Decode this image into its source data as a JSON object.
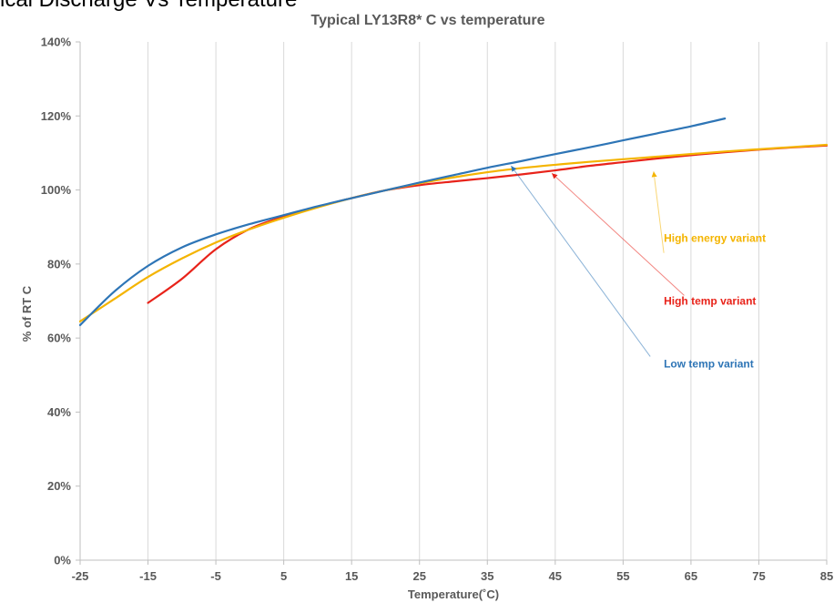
{
  "page": {
    "clipped_header": "ical Discharge Vs Temperature"
  },
  "chart_data": {
    "type": "line",
    "title": "Typical LY13R8* C vs temperature",
    "xlabel": "Temperature(˚C)",
    "ylabel": "% of RT C",
    "xlim": [
      -25,
      85
    ],
    "ylim": [
      0,
      140
    ],
    "x_ticks": [
      -25,
      -15,
      -5,
      5,
      15,
      25,
      35,
      45,
      55,
      65,
      75,
      85
    ],
    "x_tick_labels": [
      "-25",
      "-15",
      "-5",
      "5",
      "15",
      "25",
      "35",
      "45",
      "55",
      "65",
      "75",
      "85"
    ],
    "y_ticks": [
      0,
      20,
      40,
      60,
      80,
      100,
      120,
      140
    ],
    "y_tick_labels": [
      "0%",
      "20%",
      "40%",
      "60%",
      "80%",
      "100%",
      "120%",
      "140%"
    ],
    "grid": "vertical",
    "legend": "none",
    "series": [
      {
        "name": "Low temp variant",
        "color": "#2E75B6",
        "x": [
          -25,
          -20,
          -15,
          -10,
          -5,
          0,
          5,
          10,
          15,
          20,
          25,
          30,
          35,
          40,
          45,
          50,
          55,
          60,
          65,
          70
        ],
        "y": [
          63.5,
          72.5,
          79.5,
          84.5,
          88,
          90.8,
          93.2,
          95.6,
          97.8,
          99.9,
          102.0,
          104.0,
          106.0,
          107.8,
          109.7,
          111.5,
          113.4,
          115.3,
          117.2,
          119.3
        ]
      },
      {
        "name": "High temp variant",
        "color": "#E8231A",
        "x": [
          -15,
          -10,
          -5,
          0,
          5,
          10,
          15,
          20,
          25,
          30,
          35,
          40,
          45,
          50,
          55,
          60,
          65,
          70,
          75,
          80,
          85
        ],
        "y": [
          69.5,
          76,
          84,
          89.5,
          92.8,
          95.4,
          97.8,
          99.9,
          101.3,
          102.3,
          103.2,
          104.2,
          105.3,
          106.5,
          107.5,
          108.5,
          109.4,
          110.2,
          110.9,
          111.5,
          112.0
        ]
      },
      {
        "name": "High energy variant",
        "color": "#F4B400",
        "x": [
          -25,
          -20,
          -15,
          -10,
          -5,
          0,
          5,
          10,
          15,
          20,
          25,
          30,
          35,
          40,
          45,
          50,
          55,
          60,
          65,
          70,
          75,
          80,
          85
        ],
        "y": [
          64.5,
          70.5,
          76.5,
          81.5,
          85.8,
          89.4,
          92.5,
          95.3,
          97.8,
          99.9,
          101.8,
          103.4,
          104.8,
          105.9,
          106.8,
          107.6,
          108.3,
          109.0,
          109.7,
          110.4,
          111.0,
          111.6,
          112.2
        ]
      }
    ],
    "annotations": [
      {
        "text": "High energy variant",
        "color": "#F4B400",
        "label_x": 61,
        "label_y": 86,
        "arrow_from": [
          61,
          83
        ],
        "arrow_to": [
          59.5,
          105
        ]
      },
      {
        "text": "High temp variant",
        "color": "#E8231A",
        "label_x": 61,
        "label_y": 69,
        "arrow_from": [
          64,
          71.5
        ],
        "arrow_to": [
          44.5,
          104.5
        ]
      },
      {
        "text": "Low temp variant",
        "color": "#2E75B6",
        "label_x": 61,
        "label_y": 52,
        "arrow_from": [
          59,
          55
        ],
        "arrow_to": [
          38.5,
          106.5
        ]
      }
    ]
  }
}
